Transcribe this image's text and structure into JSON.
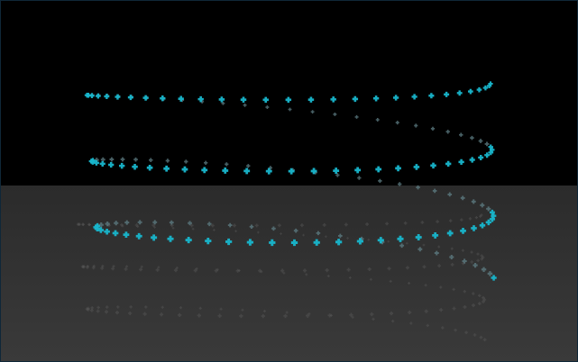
{
  "viewport": {
    "background_sky": "#000000",
    "floor_top": "#2b2b2b",
    "floor_bottom": "#3a3a3a",
    "border_color": "#0f2738"
  },
  "helix": {
    "marker_color": "#18b6cc",
    "back_marker_color": "#5f7f86",
    "reflection_color": "#5a5a5a",
    "marker_shape": "plus",
    "turns": 3,
    "points_per_turn": 56
  }
}
